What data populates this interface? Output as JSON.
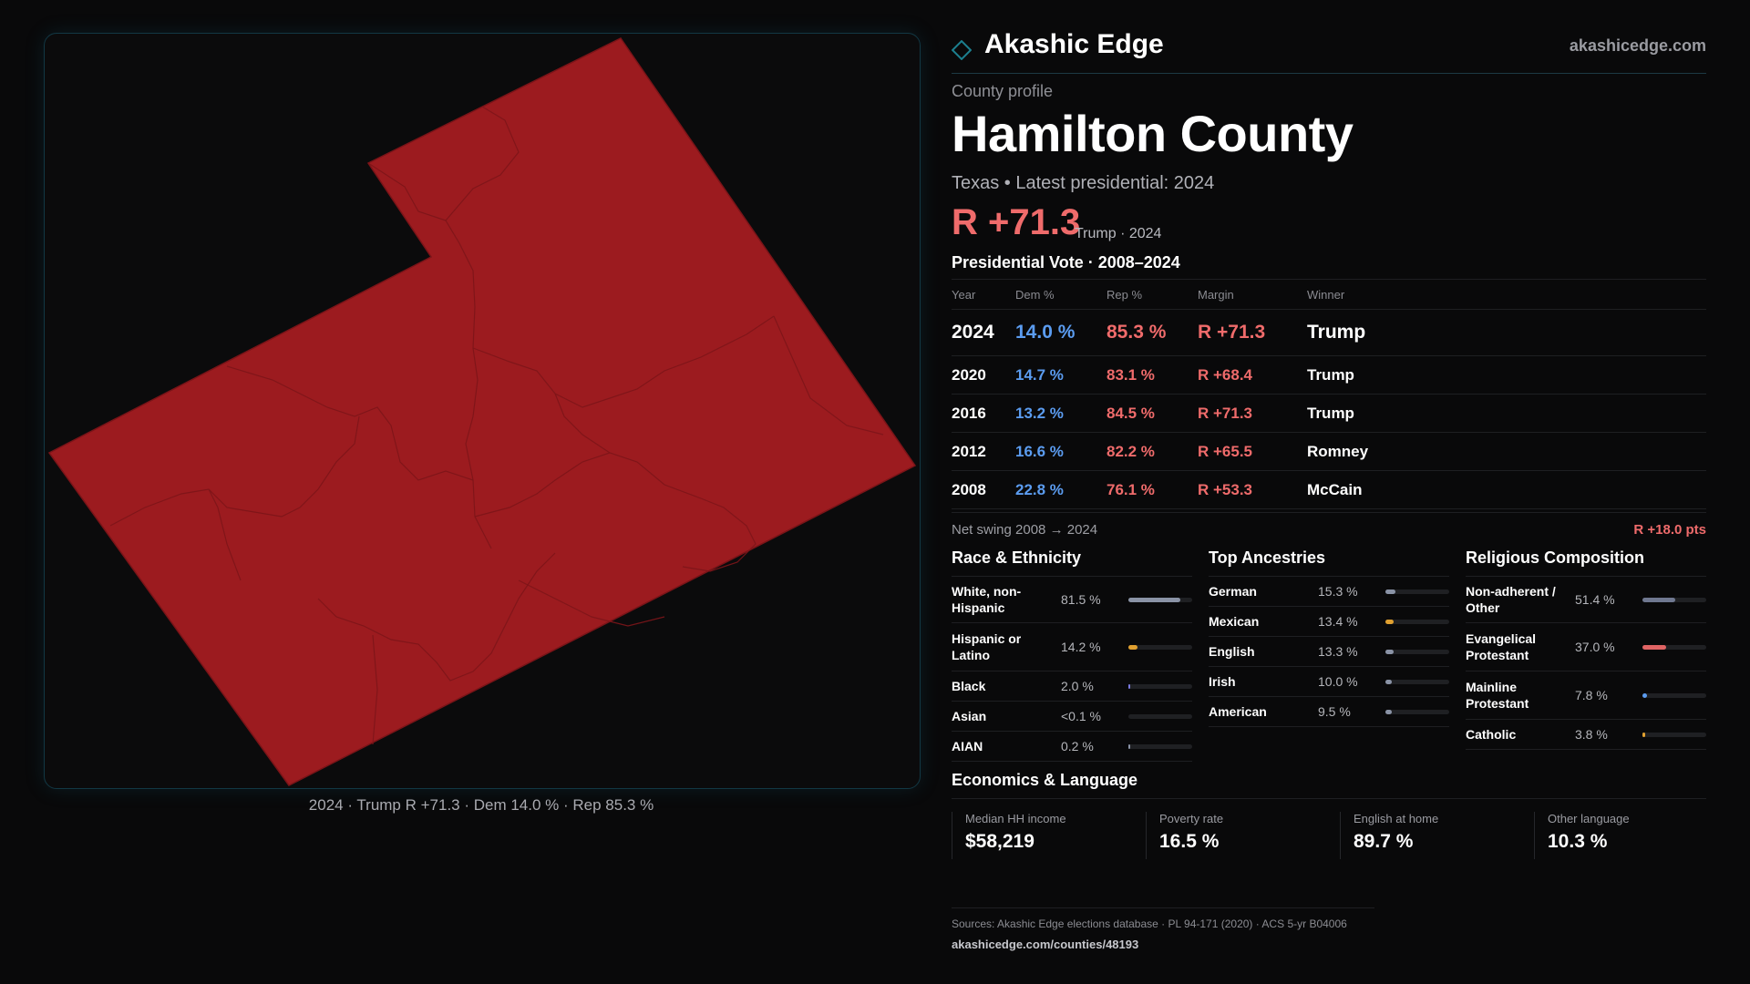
{
  "map": {
    "caption": "2024 · Trump R +71.3 · Dem 14.0 % · Rep 85.3 %",
    "fill_color": "#9c1b1f"
  },
  "brand": {
    "name": "Akashic Edge",
    "url": "akashicedge.com",
    "logo_icon": "diamond-icon",
    "accent": "#1c7f8f"
  },
  "profile": {
    "eyebrow": "County profile",
    "title": "Hamilton County",
    "subtitle": "Texas • Latest presidential: 2024",
    "margin": "R +71.3",
    "margin_note": "Trump · 2024"
  },
  "presidential": {
    "title": "Presidential Vote · 2008–2024",
    "headers": {
      "year": "Year",
      "dem": "Dem %",
      "rep": "Rep %",
      "margin": "Margin",
      "winner": "Winner"
    },
    "rows": [
      {
        "year": "2024",
        "dem": "14.0 %",
        "rep": "85.3 %",
        "margin": "R +71.3",
        "winner": "Trump"
      },
      {
        "year": "2020",
        "dem": "14.7 %",
        "rep": "83.1 %",
        "margin": "R +68.4",
        "winner": "Trump"
      },
      {
        "year": "2016",
        "dem": "13.2 %",
        "rep": "84.5 %",
        "margin": "R +71.3",
        "winner": "Trump"
      },
      {
        "year": "2012",
        "dem": "16.6 %",
        "rep": "82.2 %",
        "margin": "R +65.5",
        "winner": "Romney"
      },
      {
        "year": "2008",
        "dem": "22.8 %",
        "rep": "76.1 %",
        "margin": "R +53.3",
        "winner": "McCain"
      }
    ],
    "swing_label": "Net swing 2008 → 2024",
    "swing_value": "R +18.0 pts"
  },
  "race": {
    "title": "Race & Ethnicity",
    "items": [
      {
        "label": "White, non-Hispanic",
        "value": "81.5 %",
        "fraction": 0.815,
        "color": "#8a93a6"
      },
      {
        "label": "Hispanic or Latino",
        "value": "14.2 %",
        "fraction": 0.142,
        "color": "#e0a030"
      },
      {
        "label": "Black",
        "value": "2.0 %",
        "fraction": 0.02,
        "color": "#7a7ae0"
      },
      {
        "label": "Asian",
        "value": "<0.1 %",
        "fraction": 0.0,
        "color": "#8a93a6"
      },
      {
        "label": "AIAN",
        "value": "0.2 %",
        "fraction": 0.002,
        "color": "#8a93a6"
      }
    ]
  },
  "ancestry": {
    "title": "Top Ancestries",
    "items": [
      {
        "label": "German",
        "value": "15.3 %",
        "fraction": 0.153,
        "color": "#8a93a6"
      },
      {
        "label": "Mexican",
        "value": "13.4 %",
        "fraction": 0.134,
        "color": "#e0a030"
      },
      {
        "label": "English",
        "value": "13.3 %",
        "fraction": 0.133,
        "color": "#8a93a6"
      },
      {
        "label": "Irish",
        "value": "10.0 %",
        "fraction": 0.1,
        "color": "#8a93a6"
      },
      {
        "label": "American",
        "value": "9.5 %",
        "fraction": 0.095,
        "color": "#8a93a6"
      }
    ]
  },
  "religion": {
    "title": "Religious Composition",
    "items": [
      {
        "label": "Non-adherent / Other",
        "value": "51.4 %",
        "fraction": 0.514,
        "color": "#6f7890"
      },
      {
        "label": "Evangelical Protestant",
        "value": "37.0 %",
        "fraction": 0.37,
        "color": "#e06464"
      },
      {
        "label": "Mainline Protestant",
        "value": "7.8 %",
        "fraction": 0.078,
        "color": "#5b9cf0"
      },
      {
        "label": "Catholic",
        "value": "3.8 %",
        "fraction": 0.038,
        "color": "#e0a030"
      }
    ]
  },
  "economics": {
    "title": "Economics & Language",
    "cells": [
      {
        "label": "Median HH income",
        "value": "$58,219"
      },
      {
        "label": "Poverty rate",
        "value": "16.5 %"
      },
      {
        "label": "English at home",
        "value": "89.7 %"
      },
      {
        "label": "Other language",
        "value": "10.3 %"
      }
    ]
  },
  "footer": {
    "sources": "Sources: Akashic Edge elections database · PL 94-171 (2020) · ACS 5-yr B04006",
    "url": "akashicedge.com/counties/48193"
  }
}
